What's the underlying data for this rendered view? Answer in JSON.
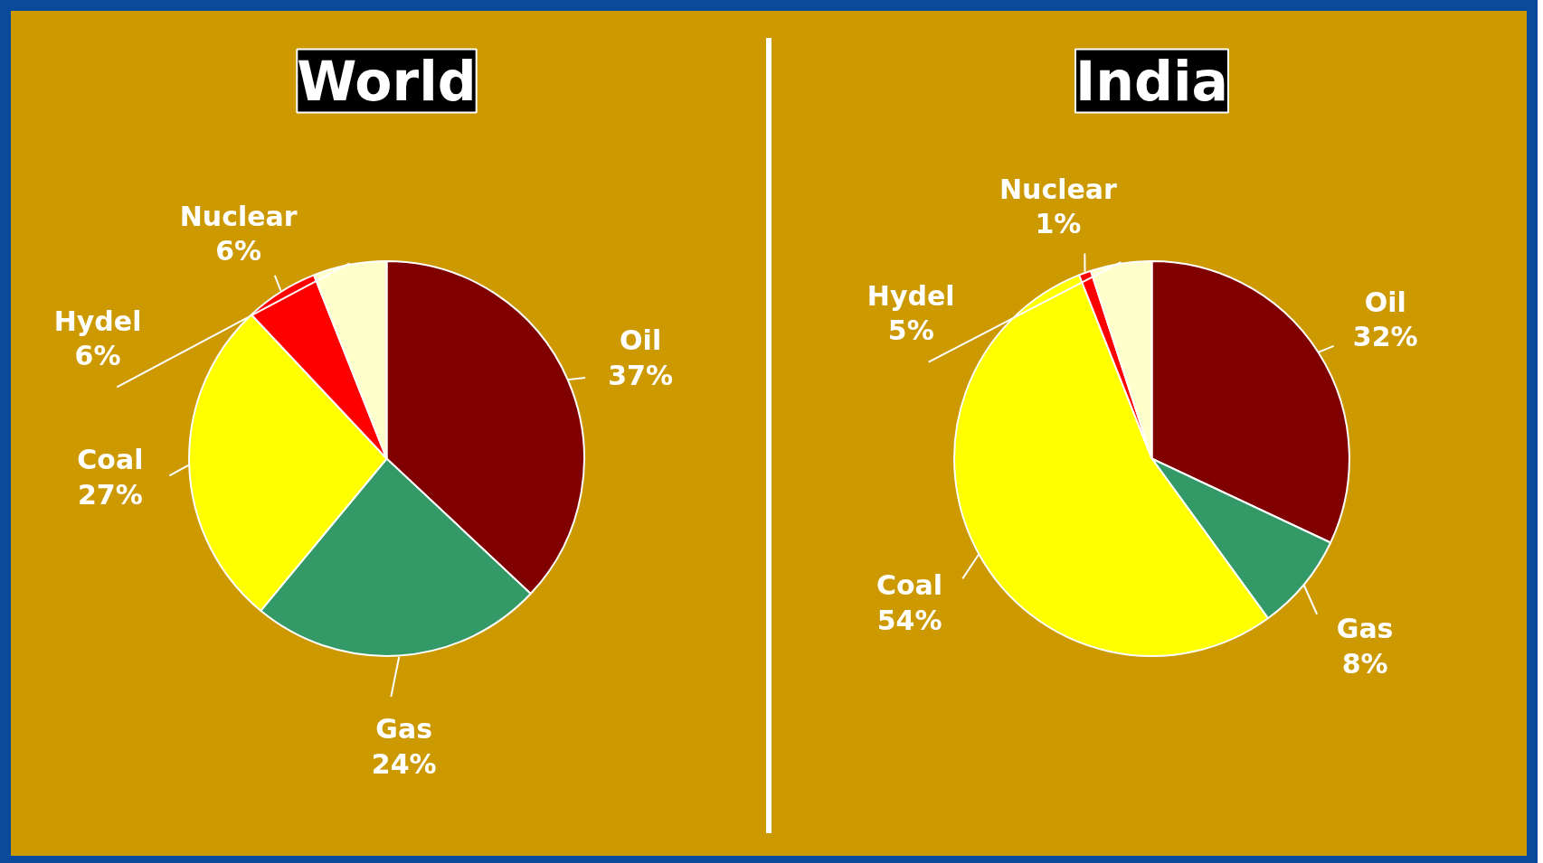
{
  "chart_data": [
    {
      "type": "pie",
      "title": "World",
      "categories": [
        "Oil",
        "Gas",
        "Coal",
        "Nuclear",
        "Hydel"
      ],
      "values": [
        37,
        24,
        27,
        6,
        6
      ],
      "value_labels": [
        "37%",
        "24%",
        "27%",
        "6%",
        "6%"
      ],
      "colors": [
        "#800000",
        "#339966",
        "#ffff00",
        "#ff0000",
        "#ffffcc"
      ]
    },
    {
      "type": "pie",
      "title": "India",
      "categories": [
        "Oil",
        "Gas",
        "Coal",
        "Nuclear",
        "Hydel"
      ],
      "values": [
        32,
        8,
        54,
        1,
        5
      ],
      "value_labels": [
        "32%",
        "8%",
        "54%",
        "1%",
        "5%"
      ],
      "colors": [
        "#800000",
        "#339966",
        "#ffff00",
        "#ff0000",
        "#ffffcc"
      ]
    }
  ]
}
